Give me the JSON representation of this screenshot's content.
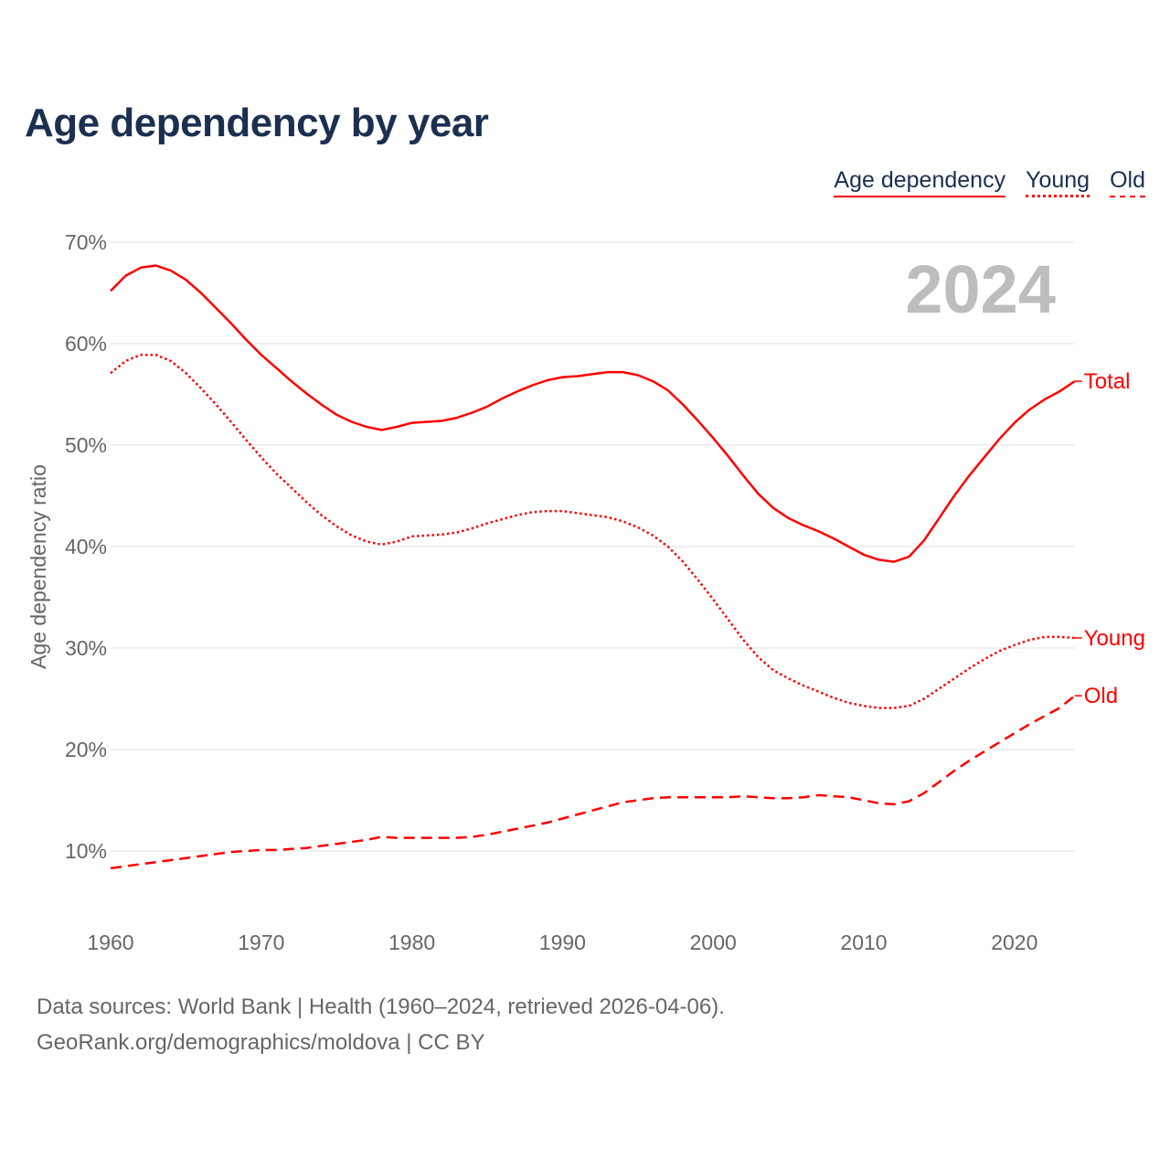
{
  "title": "Age dependency by year",
  "legend": [
    "Age dependency",
    "Young",
    "Old"
  ],
  "year_label": "2024",
  "footer": {
    "line1": "Data sources: World Bank | Health (1960–2024, retrieved 2026-04-06).",
    "line2": "GeoRank.org/demographics/moldova | CC BY"
  },
  "colors": {
    "line": "#ff0000",
    "title": "#1b2f50",
    "year": "#bdbdbd"
  },
  "chart_data": {
    "type": "line",
    "title": "Age dependency by year",
    "xlabel": "",
    "ylabel": "Age dependency ratio",
    "xlim": [
      1960,
      2024
    ],
    "ylim": [
      5,
      70
    ],
    "x_ticks": [
      1960,
      1970,
      1980,
      1990,
      2000,
      2010,
      2020
    ],
    "y_ticks": [
      10,
      20,
      30,
      40,
      50,
      60,
      70
    ],
    "y_tick_labels": [
      "10%",
      "20%",
      "30%",
      "40%",
      "50%",
      "60%",
      "70%"
    ],
    "grid": "horizontal",
    "legend_position": "top-right",
    "x_start": 1960,
    "series": [
      {
        "name": "Total",
        "legend": "Age dependency",
        "style": "solid",
        "values": [
          65.2,
          66.7,
          67.5,
          67.7,
          67.2,
          66.3,
          65.0,
          63.5,
          62.0,
          60.4,
          58.9,
          57.6,
          56.3,
          55.1,
          54.0,
          53.0,
          52.3,
          51.8,
          51.5,
          51.8,
          52.2,
          52.3,
          52.4,
          52.7,
          53.2,
          53.8,
          54.6,
          55.3,
          55.9,
          56.4,
          56.7,
          56.8,
          57.0,
          57.2,
          57.2,
          56.9,
          56.3,
          55.4,
          54.0,
          52.4,
          50.7,
          48.9,
          47.0,
          45.2,
          43.8,
          42.8,
          42.1,
          41.5,
          40.8,
          40.0,
          39.2,
          38.7,
          38.5,
          39.0,
          40.6,
          42.8,
          45.0,
          47.0,
          48.8,
          50.6,
          52.2,
          53.5,
          54.5,
          55.3,
          56.3
        ]
      },
      {
        "name": "Young",
        "legend": "Young",
        "style": "dotted",
        "values": [
          57.1,
          58.3,
          58.9,
          58.9,
          58.3,
          57.1,
          55.6,
          54.0,
          52.3,
          50.5,
          48.8,
          47.2,
          45.8,
          44.4,
          43.1,
          42.0,
          41.1,
          40.5,
          40.2,
          40.5,
          41.0,
          41.1,
          41.2,
          41.4,
          41.8,
          42.3,
          42.7,
          43.1,
          43.4,
          43.5,
          43.5,
          43.3,
          43.1,
          42.9,
          42.5,
          41.9,
          41.1,
          40.0,
          38.5,
          36.7,
          34.8,
          32.8,
          30.8,
          29.1,
          27.8,
          27.0,
          26.3,
          25.7,
          25.1,
          24.6,
          24.3,
          24.1,
          24.1,
          24.3,
          25.0,
          26.0,
          27.0,
          28.0,
          28.9,
          29.7,
          30.3,
          30.8,
          31.1,
          31.1,
          31.0
        ]
      },
      {
        "name": "Old",
        "legend": "Old",
        "style": "dashed",
        "values": [
          8.3,
          8.5,
          8.7,
          8.9,
          9.1,
          9.3,
          9.5,
          9.7,
          9.9,
          10.0,
          10.1,
          10.1,
          10.2,
          10.3,
          10.5,
          10.7,
          10.9,
          11.1,
          11.4,
          11.3,
          11.3,
          11.3,
          11.3,
          11.3,
          11.4,
          11.6,
          11.9,
          12.2,
          12.5,
          12.8,
          13.2,
          13.6,
          14.0,
          14.4,
          14.8,
          15.0,
          15.2,
          15.3,
          15.3,
          15.3,
          15.3,
          15.3,
          15.4,
          15.3,
          15.2,
          15.2,
          15.3,
          15.5,
          15.4,
          15.3,
          15.0,
          14.7,
          14.6,
          14.9,
          15.7,
          16.8,
          17.9,
          18.9,
          19.8,
          20.7,
          21.6,
          22.5,
          23.3,
          24.1,
          25.3
        ]
      }
    ]
  }
}
